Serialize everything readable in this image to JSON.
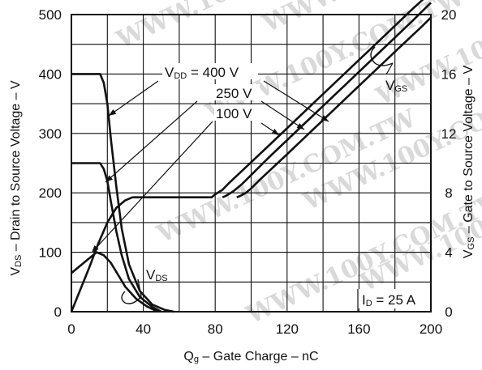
{
  "chart_data": {
    "type": "line",
    "xlabel": {
      "main": "Q",
      "sub": "g",
      "rest": " – Gate Charge – nC"
    },
    "ylabel_left": {
      "main": "V",
      "sub": "DS",
      "rest": " – Drain to Source Voltage – V"
    },
    "ylabel_right": {
      "main": "V",
      "sub": "GS",
      "rest": " – Gate to Source Voltage – V"
    },
    "xlim": [
      0,
      200
    ],
    "ylim_left": [
      0,
      500
    ],
    "ylim_right": [
      0,
      20
    ],
    "x_ticks": [
      "0",
      "40",
      "80",
      "120",
      "160",
      "200"
    ],
    "y_left_ticks": [
      "0",
      "100",
      "200",
      "300",
      "400",
      "500"
    ],
    "y_right_ticks": [
      "0",
      "4",
      "8",
      "12",
      "16",
      "20"
    ],
    "grid": true,
    "watermark": "WWW.100Y.COM.TW",
    "annotations": {
      "vdd": {
        "main": "V",
        "sub": "DD",
        "rest": " = 400 V"
      },
      "v250": "250 V",
      "v100": "100 V",
      "vgs": {
        "main": "V",
        "sub": "GS"
      },
      "vds": {
        "main": "V",
        "sub": "DS"
      },
      "id": {
        "main": "I",
        "sub": "D",
        "rest": " = 25 A"
      }
    },
    "series": [
      {
        "axis": "left",
        "x": [
          0,
          16,
          18,
          20,
          22,
          25,
          28,
          32,
          38,
          45,
          52,
          57
        ],
        "y": [
          400,
          400,
          385,
          350,
          290,
          210,
          140,
          80,
          35,
          12,
          3,
          0
        ]
      },
      {
        "axis": "left",
        "x": [
          0,
          16,
          18,
          20,
          22,
          25,
          28,
          32,
          38,
          45,
          50
        ],
        "y": [
          250,
          250,
          240,
          220,
          185,
          135,
          95,
          55,
          25,
          8,
          0
        ]
      },
      {
        "axis": "left",
        "x": [
          0,
          10,
          14,
          18,
          22,
          26,
          30,
          36,
          42,
          48
        ],
        "y": [
          65,
          90,
          100,
          95,
          82,
          62,
          42,
          22,
          9,
          0
        ]
      },
      {
        "axis": "right",
        "x": [
          0,
          5,
          10,
          15,
          20,
          25,
          30,
          34,
          38,
          78,
          80,
          84,
          88,
          96,
          110,
          130,
          150,
          170,
          190,
          200
        ],
        "y": [
          0,
          1.5,
          3,
          4.6,
          6,
          7,
          7.5,
          7.7,
          7.7,
          7.7,
          7.9,
          8.2,
          8.7,
          9.6,
          11.2,
          13.5,
          15.8,
          18.1,
          20.4,
          21.5
        ]
      },
      {
        "axis": "right",
        "x": [
          84,
          86,
          90,
          95,
          100,
          110,
          130,
          150,
          170,
          190,
          200
        ],
        "y": [
          7.7,
          7.8,
          8.1,
          8.6,
          9.2,
          10.4,
          12.7,
          15.0,
          17.3,
          19.6,
          20.8
        ]
      },
      {
        "axis": "right",
        "x": [
          92,
          94,
          97,
          100,
          105,
          120,
          140,
          160,
          180,
          195,
          200
        ],
        "y": [
          7.7,
          7.8,
          8.0,
          8.3,
          8.9,
          10.6,
          12.9,
          15.2,
          17.5,
          19.2,
          19.8
        ]
      }
    ]
  }
}
